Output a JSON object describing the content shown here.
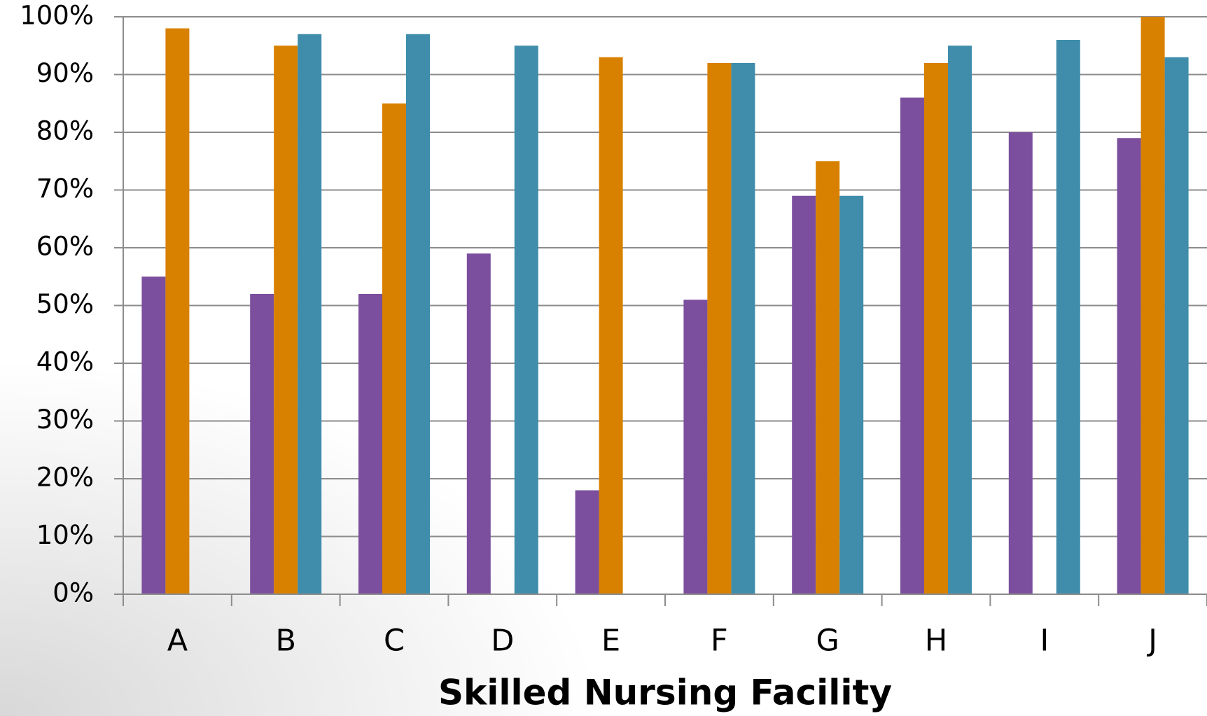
{
  "chart_data": {
    "type": "bar",
    "x_label": "Skilled Nursing Facility",
    "categories": [
      "A",
      "B",
      "C",
      "D",
      "E",
      "F",
      "G",
      "H",
      "I",
      "J"
    ],
    "series": [
      {
        "color": "#7b4f9d",
        "values": [
          55,
          52,
          52,
          59,
          18,
          51,
          69,
          86,
          80,
          79
        ]
      },
      {
        "color": "#d88000",
        "values": [
          98,
          95,
          85,
          null,
          93,
          92,
          75,
          92,
          null,
          100
        ]
      },
      {
        "color": "#3f8dab",
        "values": [
          null,
          97,
          97,
          95,
          null,
          92,
          69,
          95,
          96,
          93
        ]
      }
    ],
    "ylim": [
      0,
      100
    ],
    "yticks": [
      {
        "value": 0,
        "label": "0%"
      },
      {
        "value": 10,
        "label": "10%"
      },
      {
        "value": 20,
        "label": "20%"
      },
      {
        "value": 30,
        "label": "30%"
      },
      {
        "value": 40,
        "label": "40%"
      },
      {
        "value": 50,
        "label": "50%"
      },
      {
        "value": 60,
        "label": "60%"
      },
      {
        "value": 70,
        "label": "70%"
      },
      {
        "value": 80,
        "label": "80%"
      },
      {
        "value": 90,
        "label": "90%"
      },
      {
        "value": 100,
        "label": "100%"
      }
    ],
    "grid": true
  }
}
